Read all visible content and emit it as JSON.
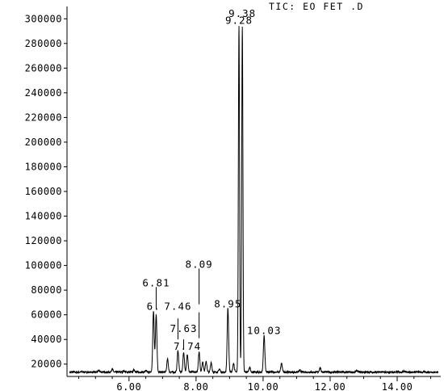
{
  "chart_data": {
    "type": "line",
    "title": "TIC: EO FET .D",
    "xlabel": "",
    "ylabel": "",
    "xlim": [
      4.15,
      15.3
    ],
    "ylim": [
      10000,
      310000
    ],
    "x_ticks": [
      "6.00",
      "8.00",
      "10.00",
      "12.00",
      "14.00"
    ],
    "y_ticks": [
      "20000",
      "40000",
      "60000",
      "80000",
      "100000",
      "120000",
      "140000",
      "160000",
      "180000",
      "200000",
      "220000",
      "240000",
      "260000",
      "280000",
      "300000"
    ],
    "grid": false,
    "baseline": 13500,
    "peaks": [
      {
        "rt": 5.1,
        "height": 14800
      },
      {
        "rt": 5.5,
        "height": 16200
      },
      {
        "rt": 5.85,
        "height": 14700
      },
      {
        "rt": 6.15,
        "height": 15500
      },
      {
        "rt": 6.5,
        "height": 14500
      },
      {
        "rt": 6.73,
        "height": 63000
      },
      {
        "rt": 6.81,
        "height": 60500
      },
      {
        "rt": 7.15,
        "height": 24000
      },
      {
        "rt": 7.46,
        "height": 31000
      },
      {
        "rt": 7.63,
        "height": 29500
      },
      {
        "rt": 7.74,
        "height": 28000
      },
      {
        "rt": 8.09,
        "height": 30000
      },
      {
        "rt": 8.2,
        "height": 22000
      },
      {
        "rt": 8.3,
        "height": 22500
      },
      {
        "rt": 8.45,
        "height": 21000
      },
      {
        "rt": 8.7,
        "height": 16000
      },
      {
        "rt": 8.95,
        "height": 65000
      },
      {
        "rt": 9.12,
        "height": 20500
      },
      {
        "rt": 9.28,
        "height": 294000
      },
      {
        "rt": 9.38,
        "height": 294000
      },
      {
        "rt": 9.6,
        "height": 17000
      },
      {
        "rt": 10.03,
        "height": 43000
      },
      {
        "rt": 10.55,
        "height": 20500
      },
      {
        "rt": 11.1,
        "height": 15000
      },
      {
        "rt": 11.7,
        "height": 17200
      },
      {
        "rt": 12.8,
        "height": 14800
      },
      {
        "rt": 14.2,
        "height": 14600
      }
    ],
    "annotations": [
      {
        "text": "9.38",
        "rt": 9.38,
        "y": 301500
      },
      {
        "text": "9.28",
        "rt": 9.28,
        "y": 296000
      },
      {
        "text": "8.09",
        "rt": 8.09,
        "y": 98000
      },
      {
        "text": "6.81",
        "rt": 6.81,
        "y": 83000
      },
      {
        "text": "6.",
        "rt": 6.73,
        "y": 64000
      },
      {
        "text": "7.46",
        "rt": 7.46,
        "y": 64000
      },
      {
        "text": "8.95",
        "rt": 8.95,
        "y": 66000
      },
      {
        "text": "7.63",
        "rt": 7.63,
        "y": 46000
      },
      {
        "text": "7.74",
        "rt": 7.74,
        "y": 31500
      },
      {
        "text": "10.03",
        "rt": 10.03,
        "y": 44500
      }
    ],
    "leader_lines": [
      {
        "rt": 8.09,
        "y1": 68500,
        "y2": 97500
      },
      {
        "rt": 6.81,
        "y1": 65000,
        "y2": 82500
      },
      {
        "rt": 7.46,
        "y1": 40000,
        "y2": 57000
      },
      {
        "rt": 7.63,
        "y1": 32500,
        "y2": 40000
      },
      {
        "rt": 8.09,
        "y1": 41000,
        "y2": 62000
      },
      {
        "rt": 8.95,
        "y1": 60000,
        "y2": 65500
      }
    ]
  }
}
